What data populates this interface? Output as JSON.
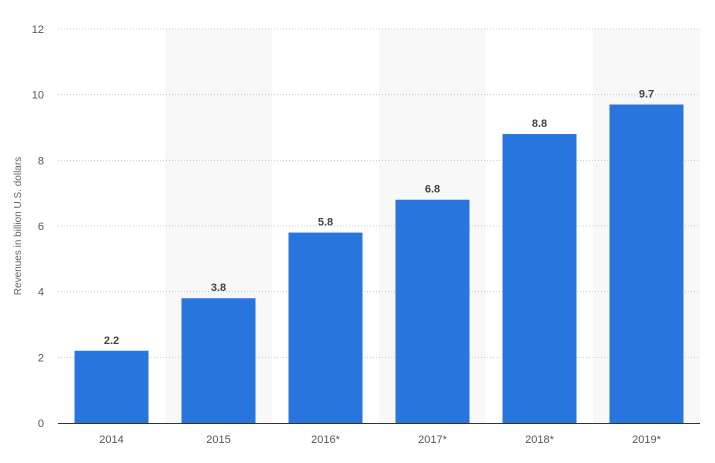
{
  "chart_data": {
    "type": "bar",
    "categories": [
      "2014",
      "2015",
      "2016*",
      "2017*",
      "2018*",
      "2019*"
    ],
    "values": [
      2.2,
      3.8,
      5.8,
      6.8,
      8.8,
      9.7
    ],
    "value_labels": [
      "2.2",
      "3.8",
      "5.8",
      "6.8",
      "8.8",
      "9.7"
    ],
    "title": "",
    "xlabel": "",
    "ylabel": "Revenues in billion U.S. dollars",
    "ylim": [
      0,
      12
    ],
    "yticks": [
      "0",
      "2",
      "4",
      "6",
      "8",
      "10",
      "12"
    ],
    "ytick_values": [
      0,
      2,
      4,
      6,
      8,
      10,
      12
    ],
    "grid": true,
    "legend": "none",
    "colors": {
      "bar": "#2876dd",
      "alt_band": "#f8f8f8",
      "grid": "#c8c8c8",
      "axis": "#333333"
    }
  }
}
